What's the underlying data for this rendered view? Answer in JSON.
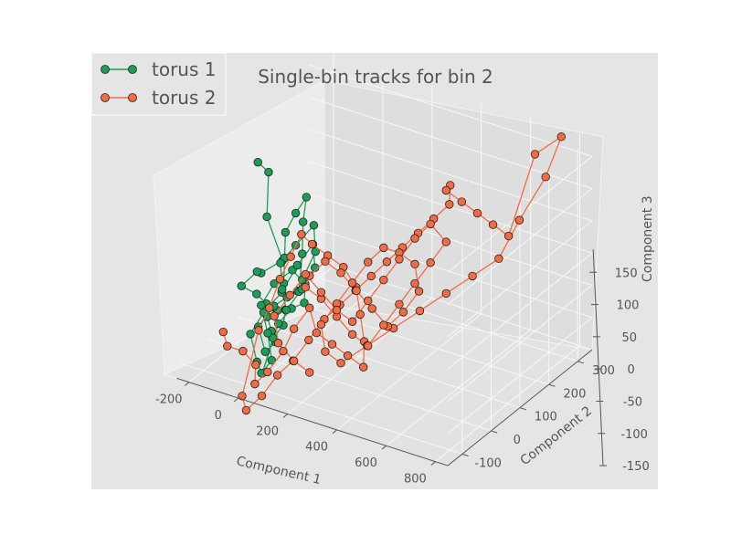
{
  "chart_data": {
    "type": "scatter",
    "projection": "3d",
    "title": "Single-bin tracks for bin 2",
    "xlabel": "Component 1",
    "ylabel": "Component 2",
    "zlabel": "Component 3",
    "xlim": [
      -300,
      850
    ],
    "ylim": [
      -150,
      350
    ],
    "zlim": [
      -150,
      180
    ],
    "xticks": [
      -200,
      0,
      200,
      400,
      600,
      800
    ],
    "yticks": [
      -100,
      0,
      100,
      200,
      300
    ],
    "zticks": [
      -150,
      -100,
      -50,
      0,
      50,
      100,
      150
    ],
    "legend_position": "top-left",
    "grid": true,
    "series": [
      {
        "name": "torus 1",
        "color": "#1b9e57",
        "marker": "circle",
        "connected": true,
        "points": [
          [
            -120,
            20,
            140
          ],
          [
            -100,
            40,
            120
          ],
          [
            -60,
            0,
            70
          ],
          [
            -20,
            20,
            0
          ],
          [
            -60,
            -20,
            -10
          ],
          [
            -100,
            0,
            -20
          ],
          [
            -140,
            -20,
            -40
          ],
          [
            -90,
            -10,
            -50
          ],
          [
            -50,
            -10,
            -60
          ],
          [
            -20,
            0,
            -70
          ],
          [
            -40,
            20,
            -80
          ],
          [
            -70,
            10,
            -90
          ],
          [
            -30,
            -10,
            -100
          ],
          [
            0,
            -20,
            -110
          ],
          [
            -20,
            -40,
            -120
          ],
          [
            -60,
            -30,
            -90
          ],
          [
            -20,
            -10,
            -60
          ],
          [
            10,
            10,
            -50
          ],
          [
            40,
            20,
            -40
          ],
          [
            70,
            0,
            -30
          ],
          [
            60,
            20,
            20
          ],
          [
            40,
            40,
            60
          ],
          [
            30,
            60,
            90
          ],
          [
            10,
            40,
            70
          ],
          [
            -20,
            30,
            40
          ],
          [
            0,
            10,
            10
          ],
          [
            20,
            -10,
            -20
          ],
          [
            50,
            -30,
            -50
          ],
          [
            30,
            -20,
            -80
          ],
          [
            0,
            -30,
            -100
          ],
          [
            -20,
            -50,
            -150
          ],
          [
            10,
            -20,
            -80
          ],
          [
            40,
            0,
            -60
          ],
          [
            80,
            10,
            -50
          ],
          [
            60,
            30,
            -30
          ],
          [
            20,
            20,
            -10
          ],
          [
            -30,
            0,
            -30
          ],
          [
            -60,
            -20,
            -60
          ],
          [
            -10,
            -40,
            -90
          ],
          [
            30,
            -60,
            -120
          ],
          [
            0,
            -70,
            -140
          ],
          [
            -30,
            -60,
            -130
          ],
          [
            -80,
            -40,
            -100
          ],
          [
            -50,
            -20,
            -70
          ],
          [
            0,
            0,
            -40
          ],
          [
            40,
            20,
            0
          ],
          [
            80,
            40,
            30
          ],
          [
            100,
            30,
            0
          ],
          [
            70,
            10,
            -30
          ],
          [
            30,
            -10,
            -60
          ],
          [
            -10,
            10,
            -40
          ],
          [
            -40,
            30,
            -10
          ],
          [
            10,
            40,
            20
          ],
          [
            60,
            60,
            50
          ],
          [
            90,
            40,
            20
          ],
          [
            60,
            20,
            -20
          ]
        ]
      },
      {
        "name": "torus 2",
        "color": "#f26b43",
        "marker": "circle",
        "connected": true,
        "points": [
          [
            -120,
            -100,
            -80
          ],
          [
            -80,
            -120,
            -90
          ],
          [
            -40,
            -100,
            -100
          ],
          [
            0,
            -90,
            -120
          ],
          [
            20,
            -110,
            -140
          ],
          [
            60,
            -100,
            -120
          ],
          [
            100,
            -80,
            -90
          ],
          [
            120,
            -60,
            -60
          ],
          [
            160,
            -40,
            -30
          ],
          [
            200,
            -50,
            -60
          ],
          [
            240,
            -30,
            -80
          ],
          [
            280,
            -10,
            -100
          ],
          [
            320,
            10,
            -120
          ],
          [
            300,
            30,
            -90
          ],
          [
            260,
            50,
            -60
          ],
          [
            220,
            70,
            -30
          ],
          [
            180,
            60,
            0
          ],
          [
            140,
            40,
            20
          ],
          [
            100,
            20,
            40
          ],
          [
            80,
            0,
            60
          ],
          [
            60,
            -20,
            30
          ],
          [
            40,
            -40,
            0
          ],
          [
            20,
            -60,
            -40
          ],
          [
            0,
            -80,
            -70
          ],
          [
            -20,
            -120,
            -160
          ],
          [
            20,
            -140,
            -170
          ],
          [
            60,
            -120,
            -150
          ],
          [
            100,
            -100,
            -120
          ],
          [
            140,
            -80,
            -100
          ],
          [
            180,
            -60,
            -70
          ],
          [
            220,
            -40,
            -40
          ],
          [
            260,
            -20,
            -20
          ],
          [
            300,
            0,
            0
          ],
          [
            340,
            20,
            20
          ],
          [
            380,
            40,
            40
          ],
          [
            420,
            60,
            60
          ],
          [
            460,
            80,
            80
          ],
          [
            500,
            100,
            100
          ],
          [
            540,
            120,
            120
          ],
          [
            520,
            140,
            140
          ],
          [
            480,
            160,
            120
          ],
          [
            520,
            180,
            100
          ],
          [
            560,
            200,
            80
          ],
          [
            600,
            220,
            60
          ],
          [
            640,
            240,
            40
          ],
          [
            700,
            280,
            160
          ],
          [
            760,
            320,
            180
          ],
          [
            720,
            300,
            120
          ],
          [
            660,
            260,
            60
          ],
          [
            600,
            240,
            0
          ],
          [
            540,
            200,
            -20
          ],
          [
            480,
            160,
            -40
          ],
          [
            420,
            120,
            -60
          ],
          [
            360,
            80,
            -80
          ],
          [
            300,
            40,
            -100
          ],
          [
            240,
            0,
            -120
          ],
          [
            200,
            -20,
            -100
          ],
          [
            160,
            0,
            -70
          ],
          [
            200,
            20,
            -40
          ],
          [
            240,
            40,
            -10
          ],
          [
            280,
            60,
            20
          ],
          [
            320,
            80,
            40
          ],
          [
            360,
            100,
            30
          ],
          [
            400,
            120,
            10
          ],
          [
            440,
            100,
            -20
          ],
          [
            400,
            80,
            -50
          ],
          [
            360,
            60,
            -70
          ],
          [
            320,
            40,
            -40
          ],
          [
            280,
            20,
            -10
          ],
          [
            240,
            0,
            20
          ],
          [
            200,
            -20,
            40
          ],
          [
            160,
            -40,
            20
          ],
          [
            120,
            -20,
            -10
          ],
          [
            160,
            0,
            -30
          ],
          [
            200,
            20,
            -60
          ],
          [
            240,
            40,
            -90
          ],
          [
            280,
            60,
            -110
          ],
          [
            320,
            80,
            -80
          ],
          [
            360,
            100,
            -50
          ],
          [
            400,
            120,
            -20
          ],
          [
            440,
            140,
            10
          ],
          [
            480,
            160,
            40
          ],
          [
            440,
            140,
            70
          ],
          [
            400,
            120,
            50
          ],
          [
            360,
            100,
            20
          ],
          [
            320,
            80,
            -10
          ],
          [
            280,
            60,
            -40
          ],
          [
            240,
            40,
            -70
          ],
          [
            200,
            20,
            -50
          ],
          [
            160,
            0,
            -20
          ],
          [
            120,
            -20,
            10
          ],
          [
            80,
            -40,
            -20
          ],
          [
            40,
            -60,
            -50
          ],
          [
            80,
            -80,
            -80
          ],
          [
            120,
            -60,
            -110
          ],
          [
            160,
            -40,
            -130
          ]
        ]
      }
    ]
  }
}
